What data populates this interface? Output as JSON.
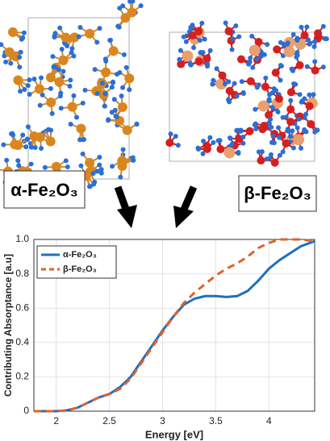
{
  "structure_labels": [
    "α-Fe₂O₃",
    "β-Fe₂O₃"
  ],
  "chart_data": {
    "type": "line",
    "x_label": "Energy  [eV]",
    "y_label": "Contributing Absorptance [a.u]",
    "x": [
      1.79,
      2.0,
      2.1,
      2.2,
      2.3,
      2.4,
      2.5,
      2.6,
      2.7,
      2.8,
      2.9,
      3.0,
      3.1,
      3.2,
      3.3,
      3.4,
      3.5,
      3.6,
      3.7,
      3.8,
      3.9,
      4.0,
      4.1,
      4.2,
      4.3,
      4.43
    ],
    "series": [
      {
        "name": "α-Fe₂O₃",
        "color": "#1f6fbf",
        "dash": false,
        "values": [
          0,
          0,
          0.005,
          0.02,
          0.05,
          0.08,
          0.1,
          0.14,
          0.2,
          0.29,
          0.38,
          0.47,
          0.55,
          0.62,
          0.655,
          0.67,
          0.67,
          0.665,
          0.67,
          0.7,
          0.76,
          0.83,
          0.88,
          0.92,
          0.96,
          0.99
        ]
      },
      {
        "name": "β-Fe₂O₃",
        "color": "#e0622a",
        "dash": true,
        "values": [
          0,
          0,
          0.005,
          0.02,
          0.05,
          0.08,
          0.1,
          0.13,
          0.19,
          0.28,
          0.37,
          0.46,
          0.55,
          0.63,
          0.69,
          0.74,
          0.79,
          0.83,
          0.86,
          0.9,
          0.95,
          0.98,
          1.0,
          1.0,
          1.0,
          0.99
        ]
      }
    ],
    "xlim": [
      1.79,
      4.43
    ],
    "xticks": [
      2,
      2.5,
      3,
      3.5,
      4
    ],
    "ylim": [
      0,
      1
    ],
    "yticks": [
      0,
      0.2,
      0.4,
      0.6,
      0.8,
      {
        "value": 1,
        "label": "1.0"
      }
    ],
    "grid": true,
    "legend": "upper left"
  }
}
